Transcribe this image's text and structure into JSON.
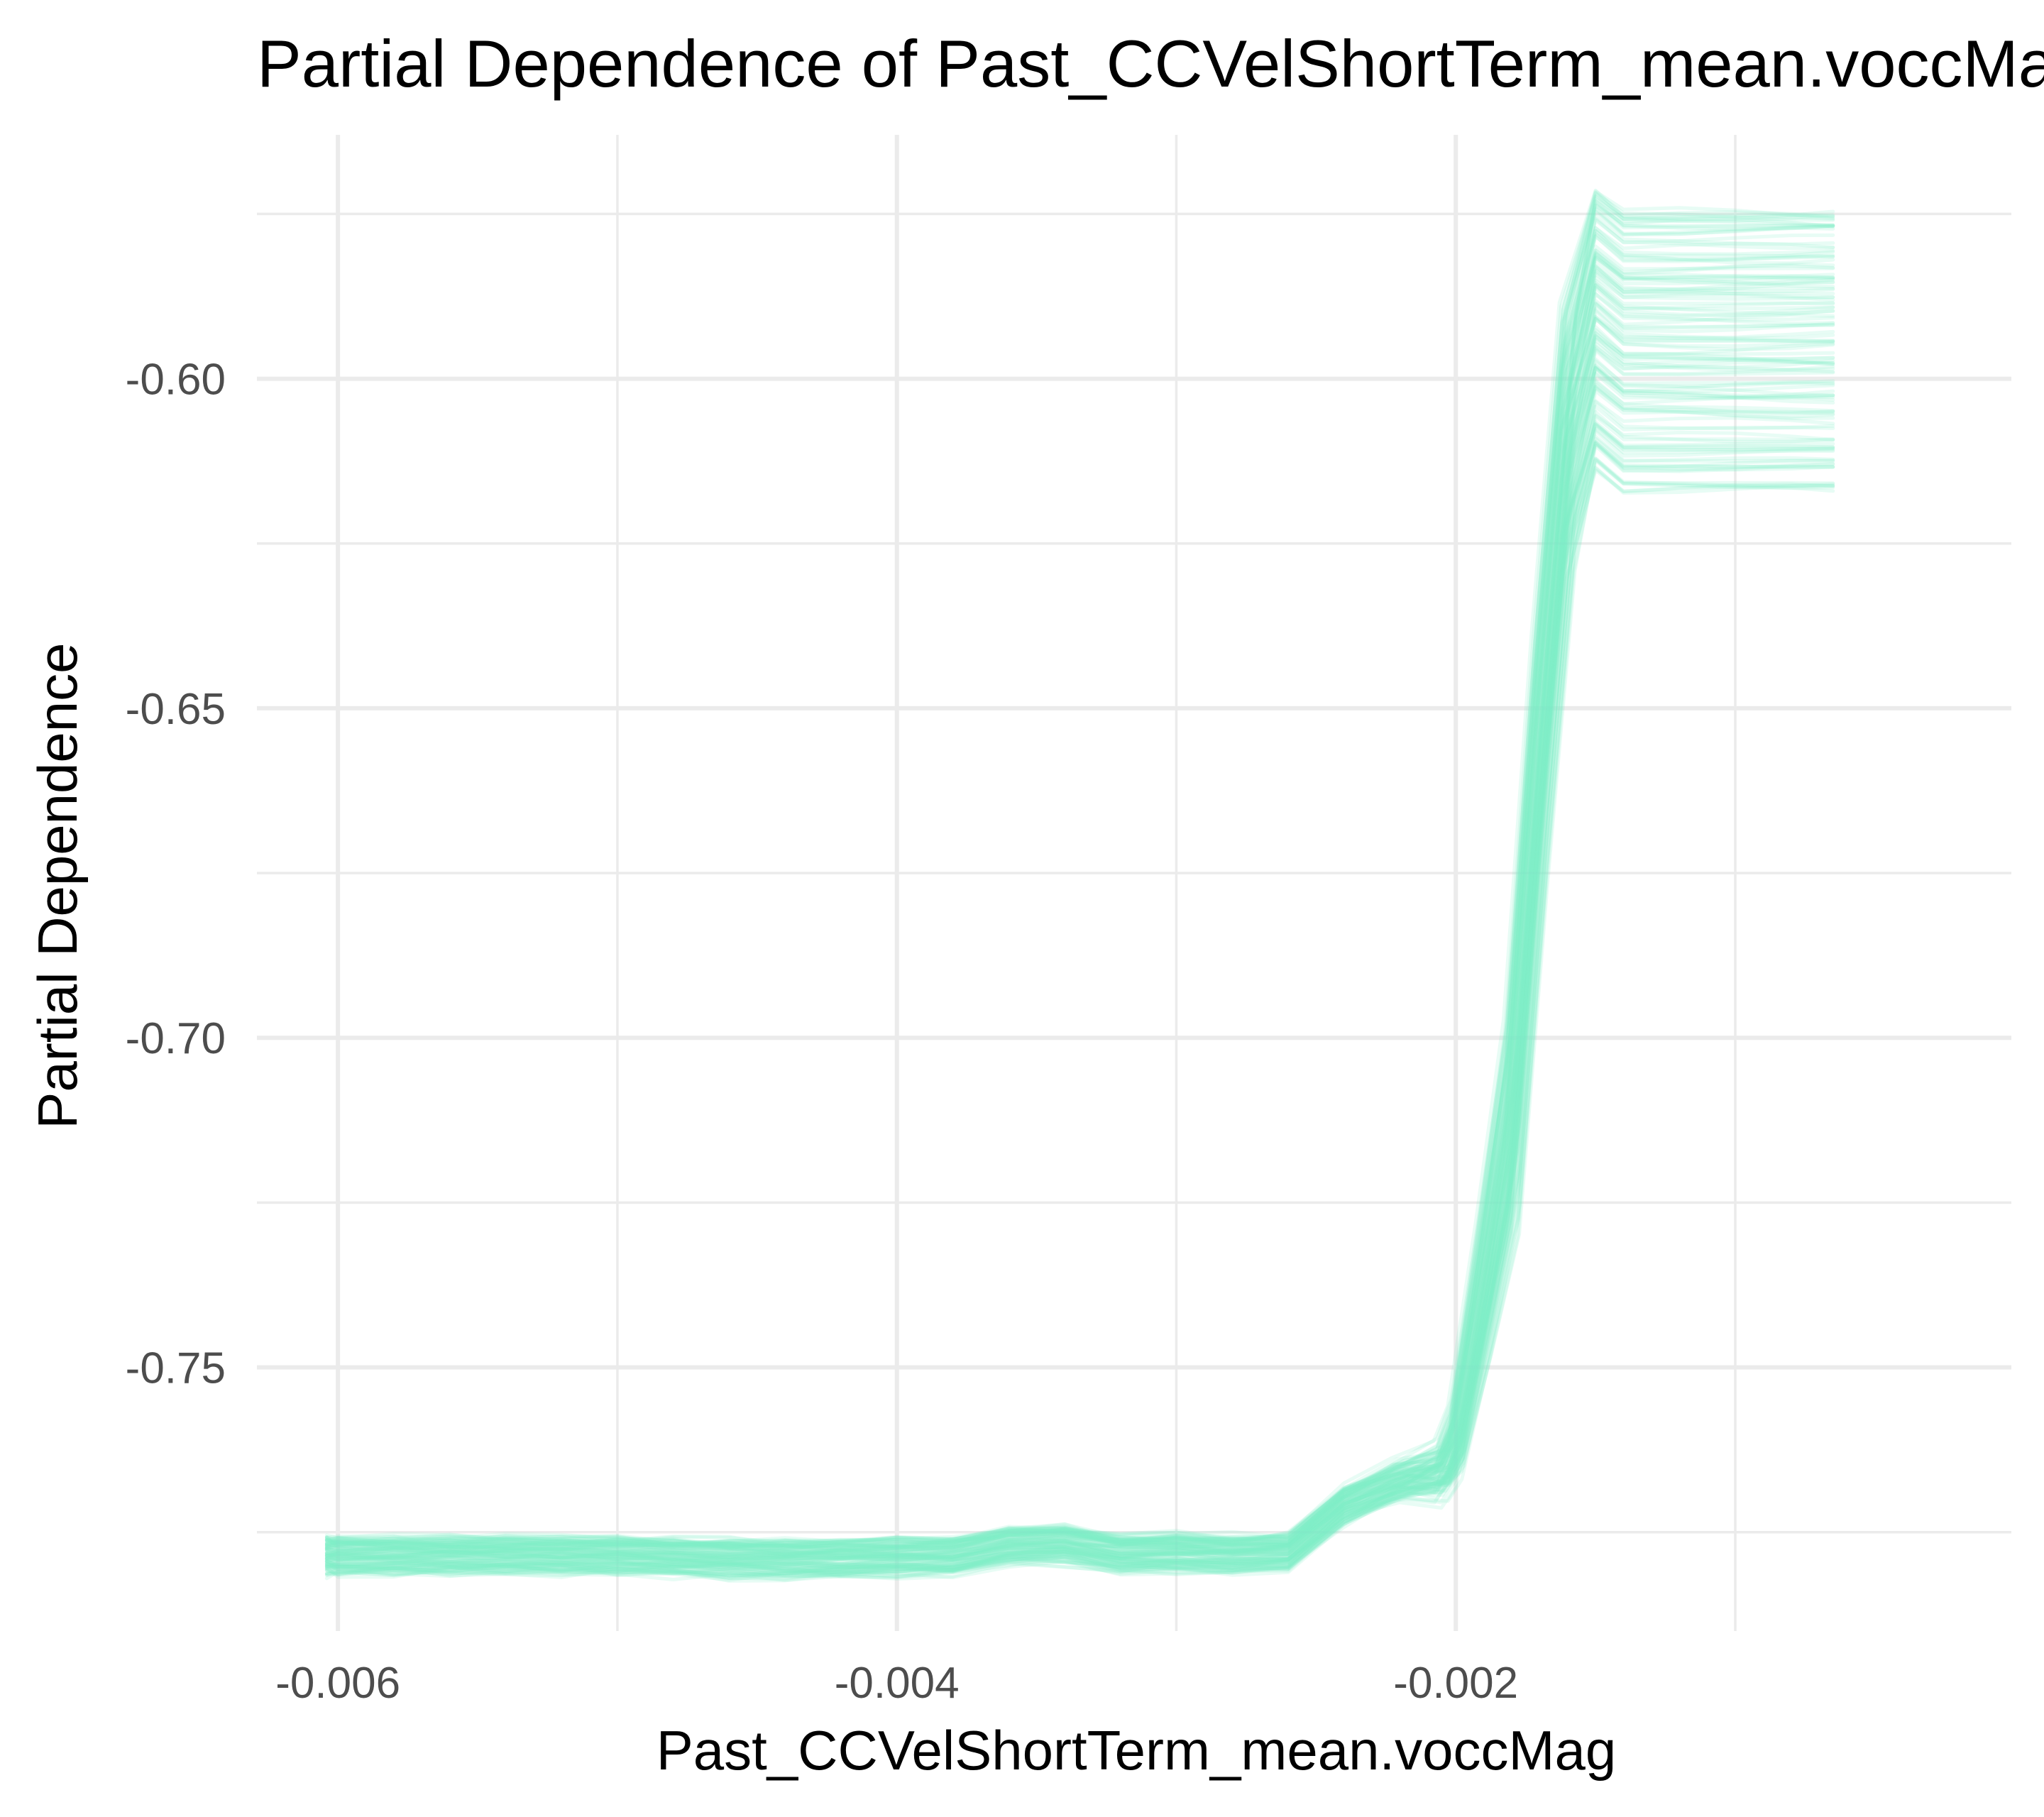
{
  "chart_data": {
    "type": "line",
    "title": "Partial Dependence of Past_CCVelShortTerm_mean.voccMag",
    "xlabel": "Past_CCVelShortTerm_mean.voccMag",
    "ylabel": "Partial Dependence",
    "xlim": [
      -0.00629,
      -1.2e-05
    ],
    "ylim": [
      -0.79,
      -0.563
    ],
    "x_ticks": [
      -0.006,
      -0.004,
      -0.002
    ],
    "x_tick_labels": [
      "-0.006",
      "-0.004",
      "-0.002"
    ],
    "y_ticks": [
      -0.75,
      -0.7,
      -0.65,
      -0.6
    ],
    "y_tick_labels": [
      "-0.75",
      "-0.70",
      "-0.65",
      "-0.60"
    ],
    "x_minor_ticks": [
      -0.005,
      -0.003,
      -0.001
    ],
    "y_minor_ticks": [
      -0.775,
      -0.725,
      -0.675,
      -0.625,
      -0.575
    ],
    "grid": true,
    "legend": "none",
    "line_color": "#7ef0c8",
    "line_opacity": 0.18,
    "series_count": 120,
    "x": [
      -0.00604,
      -0.006,
      -0.0058,
      -0.0056,
      -0.0054,
      -0.0052,
      -0.005,
      -0.0048,
      -0.0046,
      -0.0044,
      -0.0042,
      -0.004,
      -0.0038,
      -0.0036,
      -0.0034,
      -0.0032,
      -0.003,
      -0.0028,
      -0.0026,
      -0.0024,
      -0.0022,
      -0.00205,
      -0.002,
      -0.0019,
      -0.0018,
      -0.0017,
      -0.0016,
      -0.0015,
      -0.0014,
      -0.0012,
      -0.001,
      -0.0008,
      -0.00065
    ],
    "mean_curve": [
      -0.7786,
      -0.7786,
      -0.7786,
      -0.7786,
      -0.7786,
      -0.7787,
      -0.7787,
      -0.7788,
      -0.779,
      -0.7791,
      -0.779,
      -0.7789,
      -0.7788,
      -0.7772,
      -0.7768,
      -0.7783,
      -0.7781,
      -0.7785,
      -0.7782,
      -0.7712,
      -0.7675,
      -0.7665,
      -0.7625,
      -0.7405,
      -0.7165,
      -0.6615,
      -0.6125,
      -0.5955,
      -0.599,
      -0.599,
      -0.599,
      -0.599,
      -0.599
    ],
    "offset_range_left": [
      -0.0025,
      0.0025
    ],
    "offset_range_right": [
      -0.018,
      0.0255
    ]
  }
}
